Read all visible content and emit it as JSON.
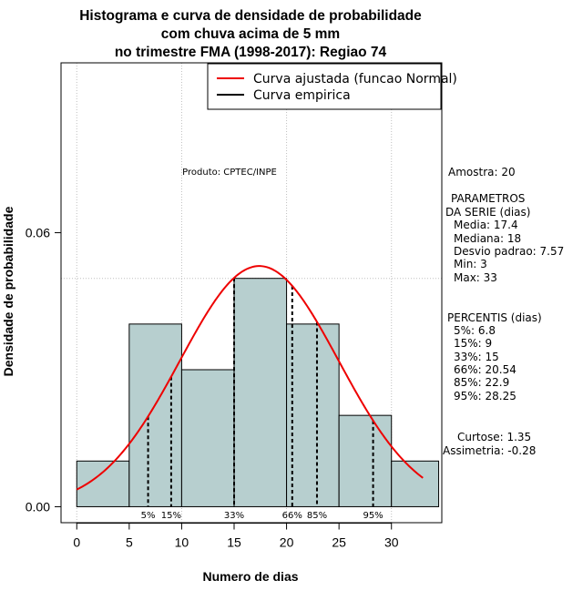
{
  "chart_data": {
    "type": "bar",
    "title": [
      "Histograma e curva de densidade de probabilidade",
      "com chuva acima de 5 mm",
      "no trimestre FMA (1998-2017): Regiao 74"
    ],
    "xlabel": "Numero de dias",
    "ylabel": "Densidade de probabilidade",
    "xlim": [
      -1.5,
      34.8
    ],
    "ylim": [
      -0.0035,
      0.0972
    ],
    "x_ticks": [
      0,
      5,
      10,
      15,
      20,
      25,
      30
    ],
    "x_tick_labels": [
      "0",
      "5",
      "10",
      "15",
      "20",
      "25",
      "30"
    ],
    "y_ticks": [
      0.0,
      0.06
    ],
    "y_tick_labels": [
      "0.00",
      "0.06"
    ],
    "grid": true,
    "grid_x": [
      0,
      10,
      20,
      30
    ],
    "grid_y": [
      0.05
    ],
    "bins": [
      {
        "from": 0,
        "to": 5,
        "density": 0.01
      },
      {
        "from": 5,
        "to": 10,
        "density": 0.04
      },
      {
        "from": 10,
        "to": 15,
        "density": 0.03
      },
      {
        "from": 15,
        "to": 20,
        "density": 0.05
      },
      {
        "from": 20,
        "to": 25,
        "density": 0.04
      },
      {
        "from": 25,
        "to": 30,
        "density": 0.02
      },
      {
        "from": 30,
        "to": 34.5,
        "density": 0.01
      }
    ],
    "series": [
      {
        "name": "Curva ajustada (funcao Normal)",
        "color": "#ee0000",
        "kind": "normal_fit",
        "mean": 17.4,
        "sd": 7.57,
        "x_range": [
          0,
          33
        ]
      },
      {
        "name": "Curva empirica",
        "color": "#000000",
        "kind": "empirical"
      }
    ],
    "legend_position": "top-right",
    "percentile_lines": [
      {
        "label": "5%",
        "x": 6.8
      },
      {
        "label": "15%",
        "x": 9
      },
      {
        "label": "33%",
        "x": 15
      },
      {
        "label": "66%",
        "x": 20.54
      },
      {
        "label": "85%",
        "x": 22.9
      },
      {
        "label": "95%",
        "x": 28.25
      }
    ],
    "colors": {
      "bar_fill": "#b7cfcf",
      "bar_stroke": "#000000",
      "grid": "#c0c0c0",
      "curve": "#ee0000"
    }
  },
  "annotations": {
    "product": "Produto: CPTEC/INPE"
  },
  "side_panel": {
    "sample": "Amostra: 20",
    "params_heading_1": "PARAMETROS",
    "params_heading_2": "DA SERIE (dias)",
    "params": [
      "Media: 17.4",
      "Mediana: 18",
      "Desvio padrao: 7.57",
      "Min: 3",
      "Max: 33"
    ],
    "percentiles_heading": "PERCENTIS (dias)",
    "percentiles": [
      "5%: 6.8",
      "15%: 9",
      "33%: 15",
      "66%: 20.54",
      "85%: 22.9",
      "95%: 28.25"
    ],
    "kurtosis": "Curtose: 1.35",
    "skewness": "Assimetria: -0.28"
  }
}
